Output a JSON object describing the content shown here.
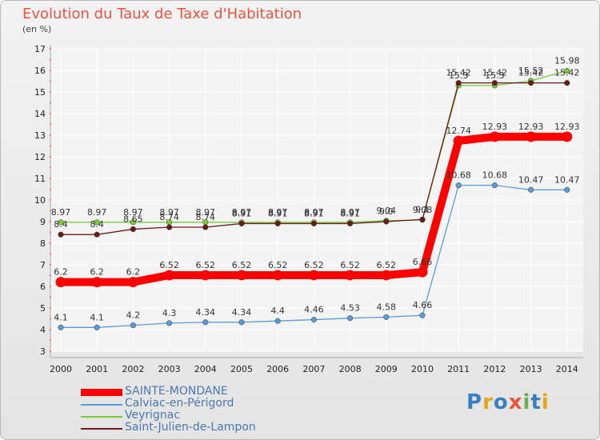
{
  "title": "Evolution du Taux de Taxe d'Habitation",
  "subtitle": "(en %)",
  "logo": {
    "text": "Proxiti",
    "letter_colors": [
      "#3a7fc2",
      "#e8a317",
      "#3a7fc2",
      "#e8543f",
      "#6ab04c",
      "#3a7fc2",
      "#e8a317"
    ]
  },
  "chart_data": {
    "type": "line",
    "title": "Evolution du Taux de Taxe d'Habitation",
    "ylabel": "(en %)",
    "xlabel": "",
    "x": [
      "2000",
      "2001",
      "2002",
      "2003",
      "2004",
      "2005",
      "2006",
      "2007",
      "2008",
      "2009",
      "2010",
      "2011",
      "2012",
      "2013",
      "2014"
    ],
    "ylim": [
      3,
      17
    ],
    "yticks": [
      3,
      4,
      5,
      6,
      7,
      8,
      9,
      10,
      11,
      12,
      13,
      14,
      15,
      16,
      17
    ],
    "grid": true,
    "legend_position": "bottom-left",
    "series": [
      {
        "name": "SAINTE-MONDANE",
        "color": "#ff0000",
        "emphasis": true,
        "values": [
          6.2,
          6.2,
          6.2,
          6.52,
          6.52,
          6.52,
          6.52,
          6.52,
          6.52,
          6.52,
          6.66,
          12.74,
          12.93,
          12.93,
          12.93
        ],
        "labels": [
          "6.2",
          "6.2",
          "6.2",
          "6.52",
          "6.52",
          "6.52",
          "6.52",
          "6.52",
          "6.52",
          "6.52",
          "6.66",
          "12.74",
          "12.93",
          "12.93",
          "12.93"
        ]
      },
      {
        "name": "Calviac-en-Périgord",
        "color": "#5b9bd5",
        "values": [
          4.1,
          4.1,
          4.2,
          4.3,
          4.34,
          4.34,
          4.4,
          4.46,
          4.53,
          4.58,
          4.66,
          10.68,
          10.68,
          10.47,
          10.47
        ],
        "labels": [
          "4.1",
          "4.1",
          "4.2",
          "4.3",
          "4.34",
          "4.34",
          "4.4",
          "4.46",
          "4.53",
          "4.58",
          "4.66",
          "10.68",
          "10.68",
          "10.47",
          "10.47"
        ]
      },
      {
        "name": "Veyrignac",
        "color": "#77cc33",
        "values": [
          8.97,
          8.97,
          8.97,
          8.97,
          8.97,
          8.97,
          8.97,
          8.97,
          8.97,
          9.04,
          9.08,
          15.3,
          15.3,
          15.52,
          15.98
        ],
        "labels": [
          "8.97",
          "8.97",
          "8.97",
          "8.97",
          "8.97",
          "8.97",
          "8.97",
          "8.97",
          "8.97",
          "9.04",
          "9.08",
          "15.3",
          "15.3",
          "15.52",
          "15.98"
        ]
      },
      {
        "name": "Saint-Julien-de-Lampon",
        "color": "#6b1a1a",
        "values": [
          8.4,
          8.4,
          8.65,
          8.74,
          8.74,
          8.91,
          8.91,
          8.91,
          8.91,
          9.0,
          9.1,
          15.42,
          15.42,
          15.42,
          15.42
        ],
        "labels": [
          "8.4",
          "8.4",
          "8.65",
          "8.74",
          "8.74",
          "8.91",
          "8.91",
          "8.91",
          "8.91",
          "9.0",
          "9.1",
          "15.42",
          "15.42",
          "15.42",
          "15.42"
        ]
      }
    ]
  }
}
